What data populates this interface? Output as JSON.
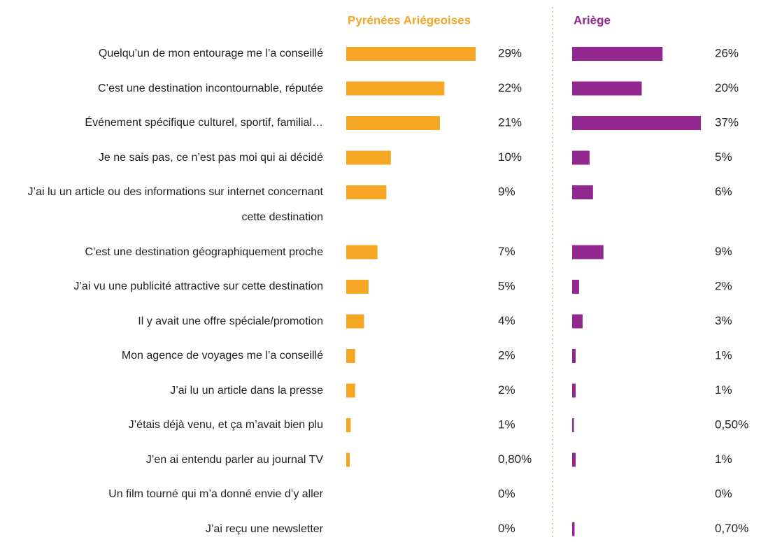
{
  "chart_data": {
    "type": "bar",
    "categories": [
      "Quelqu’un de mon entourage me l’a conseillé",
      "C’est une destination incontournable, réputée",
      "Événement spécifique culturel, sportif, familial…",
      "Je ne sais pas, ce n’est pas moi qui ai décidé",
      "J’ai lu un article ou des informations sur internet concernant cette destination",
      "C’est une destination géographiquement proche",
      "J’ai vu une publicité attractive sur cette destination",
      "Il y avait une offre spéciale/promotion",
      "Mon agence de voyages me l’a conseillé",
      "J’ai lu un article dans la presse",
      "J’étais déjà venu, et ça m’avait bien plu",
      "J’en ai entendu parler au journal TV",
      "Un film tourné qui m’a donné envie d’y aller",
      "J’ai reçu une newsletter"
    ],
    "series": [
      {
        "name": "Pyrénées Ariégeoises",
        "color": "#f5a623",
        "values": [
          29,
          22,
          21,
          10,
          9,
          7,
          5,
          4,
          2,
          2,
          1,
          0.8,
          0,
          0
        ],
        "value_labels": [
          "29%",
          "22%",
          "21%",
          "10%",
          "9%",
          "7%",
          "5%",
          "4%",
          "2%",
          "2%",
          "1%",
          "0,80%",
          "0%",
          "0%"
        ]
      },
      {
        "name": "Ariège",
        "color": "#92278f",
        "values": [
          26,
          20,
          37,
          5,
          6,
          9,
          2,
          3,
          1,
          1,
          0.5,
          1,
          0,
          0.7
        ],
        "value_labels": [
          "26%",
          "20%",
          "37%",
          "5%",
          "6%",
          "9%",
          "2%",
          "3%",
          "1%",
          "1%",
          "0,50%",
          "1%",
          "0%",
          "0,70%"
        ]
      }
    ]
  }
}
